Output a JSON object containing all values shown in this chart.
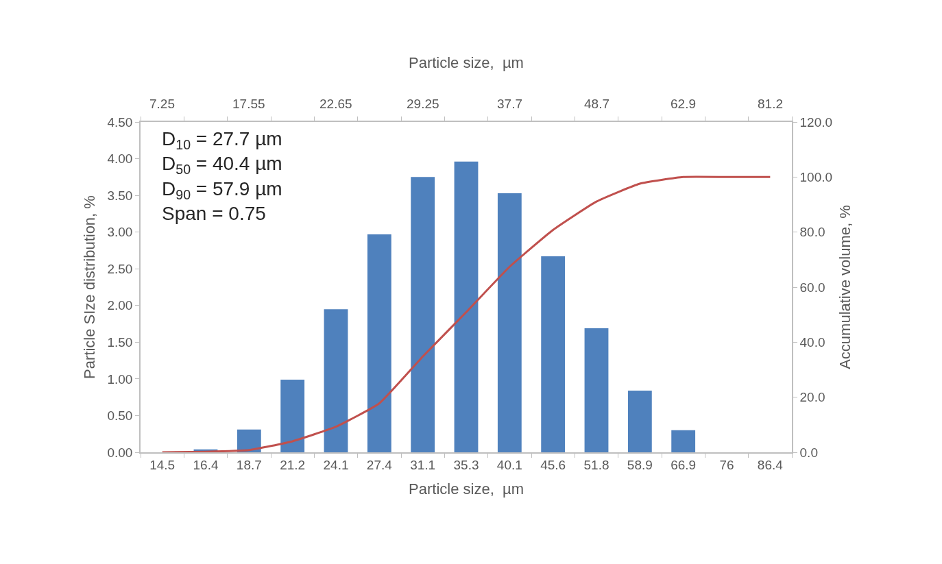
{
  "chart_data": {
    "type": "bar",
    "xlabel": "Particle size,  µm",
    "x2label": "Particle size,  µm",
    "ylabel": "Particle SIze distribution, %",
    "y2label": "Accumulative volume, %",
    "categories": [
      "14.5",
      "16.4",
      "18.7",
      "21.2",
      "24.1",
      "27.4",
      "31.1",
      "35.3",
      "40.1",
      "45.6",
      "51.8",
      "58.9",
      "66.9",
      "76",
      "86.4"
    ],
    "series": [
      {
        "color": "#4f81bd",
        "values": [
          0,
          0.04,
          0.31,
          0.99,
          1.95,
          2.97,
          3.75,
          3.96,
          3.53,
          2.67,
          1.69,
          0.84,
          0.3,
          0,
          0
        ]
      },
      {
        "type": "line",
        "axis": "y2",
        "color": "#c0504d",
        "values": [
          0,
          0.2,
          0.8,
          4.0,
          9.3,
          17.8,
          34.8,
          50.9,
          67.4,
          80.8,
          91.1,
          97.6,
          100,
          100,
          100
        ]
      }
    ],
    "ylim": [
      0,
      4.5
    ],
    "yticks": [
      {
        "value": 0,
        "label": "0.00"
      },
      {
        "value": 0.5,
        "label": "0.50"
      },
      {
        "value": 1,
        "label": "1.00"
      },
      {
        "value": 1.5,
        "label": "1.50"
      },
      {
        "value": 2,
        "label": "2.00"
      },
      {
        "value": 2.5,
        "label": "2.50"
      },
      {
        "value": 3,
        "label": "3.00"
      },
      {
        "value": 3.5,
        "label": "3.50"
      },
      {
        "value": 4,
        "label": "4.00"
      },
      {
        "value": 4.5,
        "label": "4.50"
      }
    ],
    "y2lim": [
      0,
      120
    ],
    "y2ticks": [
      {
        "value": 0,
        "label": "0.0"
      },
      {
        "value": 20,
        "label": "20.0"
      },
      {
        "value": 40,
        "label": "40.0"
      },
      {
        "value": 60,
        "label": "60.0"
      },
      {
        "value": 80,
        "label": "80.0"
      },
      {
        "value": 100,
        "label": "100.0"
      },
      {
        "value": 120,
        "label": "120.0"
      }
    ],
    "annotations": [
      "D$_{10}$ = 27.7 µm\nD$_{50}$ = 40.4 µm\nD$_{90}$ = 57.9 µm\nSpan = 0.75",
      "7.25",
      "17.55",
      "22.65",
      "29.25",
      "37.7",
      "48.7",
      "62.9",
      "81.2"
    ],
    "marker": "none",
    "line_style": "solid"
  }
}
